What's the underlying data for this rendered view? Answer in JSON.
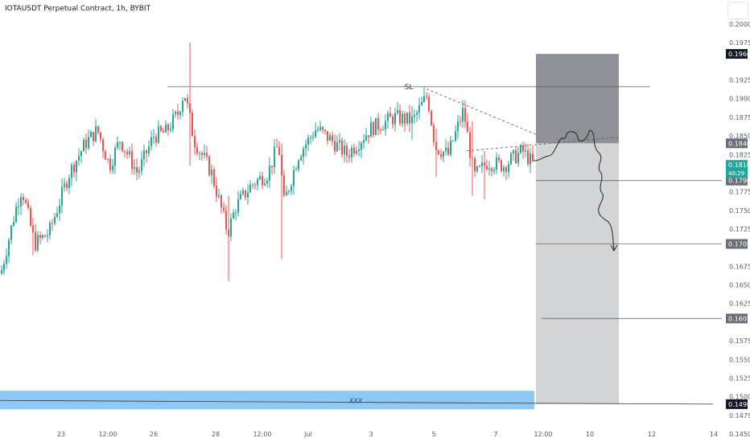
{
  "title": "IOTAUSDT Perpetual Contract, 1h, BYBIT",
  "colors": {
    "up": "#26a69a",
    "down": "#ef5350",
    "risk_zone": "#8f9196",
    "reward_zone": "#d3d4d6",
    "support_zone": "#90c8f5",
    "price_tag": "#26a69a",
    "gray_tag": "#6b6e75",
    "dark_tag": "#131722"
  },
  "chart_data": {
    "type": "candlestick",
    "symbol": "IOTAUSDT",
    "timeframe": "1h",
    "exchange": "BYBIT",
    "ylim": [
      0.145,
      0.2
    ],
    "y_ticks": [
      "0.2000",
      "0.1975",
      "0.1925",
      "0.1900",
      "0.1875",
      "0.1850",
      "0.1825",
      "0.1775",
      "0.1750",
      "0.1725",
      "0.1675",
      "0.1650",
      "0.1625",
      "0.1575",
      "0.1550",
      "0.1525",
      "0.1500",
      "0.1475",
      "0.1450"
    ],
    "x_ticks": [
      "23",
      "12:00",
      "26",
      "28",
      "12:00",
      "Jul",
      "3",
      "5",
      "7",
      "12:00",
      "10",
      "12",
      "14"
    ],
    "current_price": "0.1810",
    "countdown": "40:29",
    "price_tags": [
      {
        "value": "0.1960",
        "style": "dark"
      },
      {
        "value": "0.1840",
        "style": "gray"
      },
      {
        "value": "0.1790",
        "style": "gray"
      },
      {
        "value": "0.1705",
        "style": "gray"
      },
      {
        "value": "0.1605",
        "style": "gray"
      },
      {
        "value": "0.1490",
        "style": "dark"
      }
    ],
    "annotations": {
      "stop_loss_label": "SL",
      "stop_loss_level": 0.1916,
      "support_zone_label": "XXX",
      "support_zone": [
        0.1483,
        0.1508
      ],
      "position": {
        "entry": 0.184,
        "stop": 0.196,
        "target": 0.149,
        "side": "short"
      },
      "target_levels": [
        0.179,
        0.1705,
        0.1605,
        0.149
      ]
    },
    "ohlc_anchors": [
      {
        "t": 0,
        "p": 0.1665
      },
      {
        "t": 18,
        "p": 0.175
      },
      {
        "t": 26,
        "p": 0.178
      },
      {
        "t": 42,
        "p": 0.1705
      },
      {
        "t": 60,
        "p": 0.172
      },
      {
        "t": 85,
        "p": 0.18
      },
      {
        "t": 105,
        "p": 0.184
      },
      {
        "t": 120,
        "p": 0.1858
      },
      {
        "t": 135,
        "p": 0.181
      },
      {
        "t": 148,
        "p": 0.1845
      },
      {
        "t": 170,
        "p": 0.18
      },
      {
        "t": 190,
        "p": 0.185
      },
      {
        "t": 205,
        "p": 0.1855
      },
      {
        "t": 220,
        "p": 0.188
      },
      {
        "t": 228,
        "p": 0.191
      },
      {
        "t": 240,
        "p": 0.1845
      },
      {
        "t": 262,
        "p": 0.18
      },
      {
        "t": 282,
        "p": 0.172
      },
      {
        "t": 292,
        "p": 0.1755
      },
      {
        "t": 312,
        "p": 0.1785
      },
      {
        "t": 332,
        "p": 0.18
      },
      {
        "t": 345,
        "p": 0.184
      },
      {
        "t": 352,
        "p": 0.176
      },
      {
        "t": 370,
        "p": 0.1825
      },
      {
        "t": 392,
        "p": 0.186
      },
      {
        "t": 410,
        "p": 0.1845
      },
      {
        "t": 430,
        "p": 0.1825
      },
      {
        "t": 460,
        "p": 0.186
      },
      {
        "t": 490,
        "p": 0.1875
      },
      {
        "t": 512,
        "p": 0.187
      },
      {
        "t": 530,
        "p": 0.1905
      },
      {
        "t": 540,
        "p": 0.1835
      },
      {
        "t": 556,
        "p": 0.1825
      },
      {
        "t": 575,
        "p": 0.1885
      },
      {
        "t": 588,
        "p": 0.1795
      },
      {
        "t": 605,
        "p": 0.1815
      },
      {
        "t": 625,
        "p": 0.181
      },
      {
        "t": 648,
        "p": 0.183
      },
      {
        "t": 663,
        "p": 0.181
      }
    ],
    "spikes": [
      {
        "t": 236,
        "hi": 0.1975,
        "lo": 0.181
      },
      {
        "t": 283,
        "hi": 0.177,
        "lo": 0.1655
      },
      {
        "t": 350,
        "hi": 0.184,
        "lo": 0.1685
      },
      {
        "t": 40,
        "hi": 0.174,
        "lo": 0.169
      },
      {
        "t": 585,
        "hi": 0.187,
        "lo": 0.177
      },
      {
        "t": 600,
        "hi": 0.183,
        "lo": 0.1765
      },
      {
        "t": 542,
        "hi": 0.186,
        "lo": 0.1795
      },
      {
        "t": 510,
        "hi": 0.189,
        "lo": 0.1845
      }
    ]
  }
}
